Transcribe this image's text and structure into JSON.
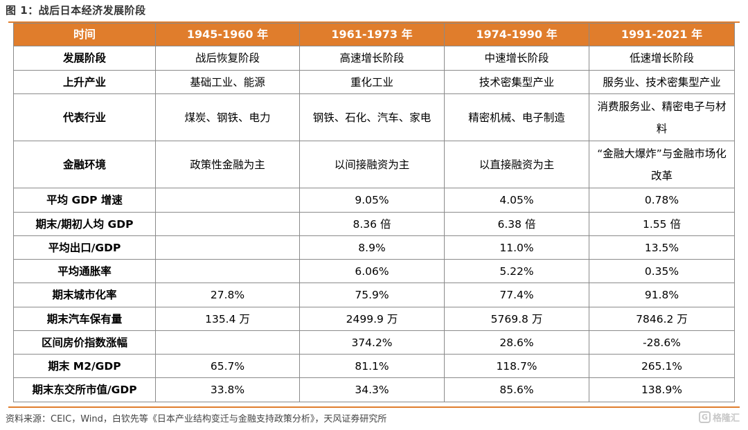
{
  "title": "图 1：战后日本经济发展阶段",
  "header": [
    "时间",
    "1945-1960 年",
    "1961-1973 年",
    "1974-1990 年",
    "1991-2021 年"
  ],
  "rows": [
    {
      "label": "发展阶段",
      "cells": [
        "战后恢复阶段",
        "高速增长阶段",
        "中速增长阶段",
        "低速增长阶段"
      ]
    },
    {
      "label": "上升产业",
      "cells": [
        "基础工业、能源",
        "重化工业",
        "技术密集型产业",
        "服务业、技术密集型产业"
      ]
    },
    {
      "label": "代表行业",
      "cells": [
        "煤炭、钢铁、电力",
        "钢铁、石化、汽车、家电",
        "精密机械、电子制造",
        "消费服务业、精密电子与材料"
      ]
    },
    {
      "label": "金融环境",
      "cells": [
        "政策性金融为主",
        "以间接融资为主",
        "以直接融资为主",
        "“金融大爆炸”与金融市场化改革"
      ]
    },
    {
      "label": "平均 GDP 增速",
      "cells": [
        "",
        "9.05%",
        "4.05%",
        "0.78%"
      ]
    },
    {
      "label": "期末/期初人均 GDP",
      "cells": [
        "",
        "8.36 倍",
        "6.38 倍",
        "1.55 倍"
      ]
    },
    {
      "label": "平均出口/GDP",
      "cells": [
        "",
        "8.9%",
        "11.0%",
        "13.5%"
      ]
    },
    {
      "label": "平均通胀率",
      "cells": [
        "",
        "6.06%",
        "5.22%",
        "0.35%"
      ]
    },
    {
      "label": "期末城市化率",
      "cells": [
        "27.8%",
        "75.9%",
        "77.4%",
        "91.8%"
      ]
    },
    {
      "label": "期末汽车保有量",
      "cells": [
        "135.4 万",
        "2499.9 万",
        "5769.8 万",
        "7846.2 万"
      ]
    },
    {
      "label": "区间房价指数涨幅",
      "cells": [
        "",
        "374.2%",
        "28.6%",
        "-28.6%"
      ]
    },
    {
      "label": "期末 M2/GDP",
      "cells": [
        "65.7%",
        "81.1%",
        "118.7%",
        "265.1%"
      ]
    },
    {
      "label": "期末东交所市值/GDP",
      "cells": [
        "33.8%",
        "34.3%",
        "85.6%",
        "138.9%"
      ]
    }
  ],
  "source": "资料来源：CEIC，Wind，白钦先等《日本产业结构变迁与金融支持政策分析》，天风证券研究所",
  "watermark": "格隆汇",
  "colors": {
    "accent": "#e07d2c",
    "border": "#8a8a8a"
  }
}
